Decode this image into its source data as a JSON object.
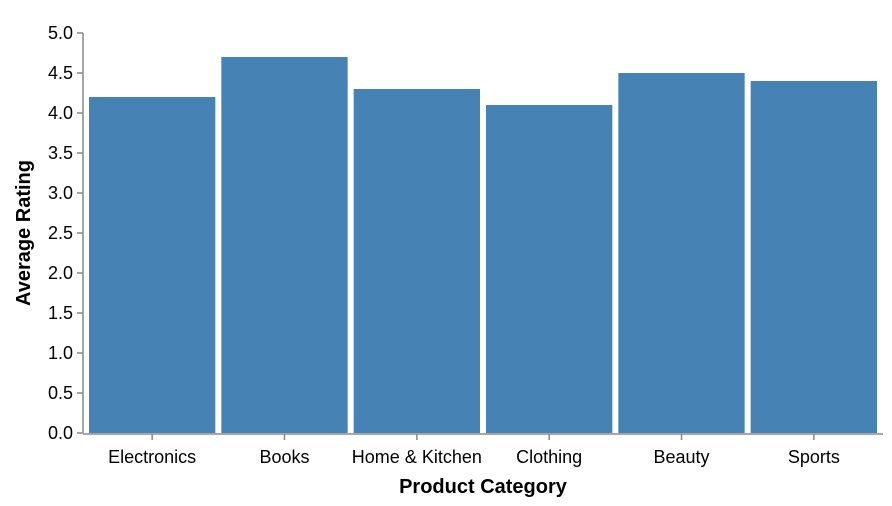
{
  "chart_data": {
    "type": "bar",
    "categories": [
      "Electronics",
      "Books",
      "Home & Kitchen",
      "Clothing",
      "Beauty",
      "Sports"
    ],
    "values": [
      4.2,
      4.7,
      4.3,
      4.1,
      4.5,
      4.4
    ],
    "xlabel": "Product Category",
    "ylabel": "Average Rating",
    "ylim": [
      0,
      5
    ],
    "yticks": [
      "0.0",
      "0.5",
      "1.0",
      "1.5",
      "2.0",
      "2.5",
      "3.0",
      "3.5",
      "4.0",
      "4.5",
      "5.0"
    ],
    "bar_color": "#4682b4",
    "grid": false
  }
}
